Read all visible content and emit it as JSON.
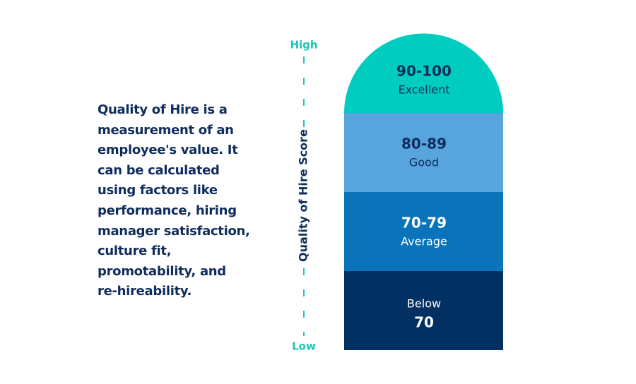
{
  "description": {
    "lines": [
      "Quality of Hire is a",
      "measurement of an",
      "employee's value. It",
      "can be calculated",
      "using factors like",
      "performance, hiring",
      "manager satisfaction,",
      "culture fit,",
      "promotability, and",
      "re-hireability."
    ]
  },
  "axis": {
    "high": "High",
    "low": "Low",
    "title": "Quality of Hire Score"
  },
  "tiers": [
    {
      "top": "90-100",
      "bottom": "Excellent"
    },
    {
      "top": "80-89",
      "bottom": "Good"
    },
    {
      "top": "70-79",
      "bottom": "Average"
    },
    {
      "top": "Below",
      "bottom": "70"
    }
  ]
}
